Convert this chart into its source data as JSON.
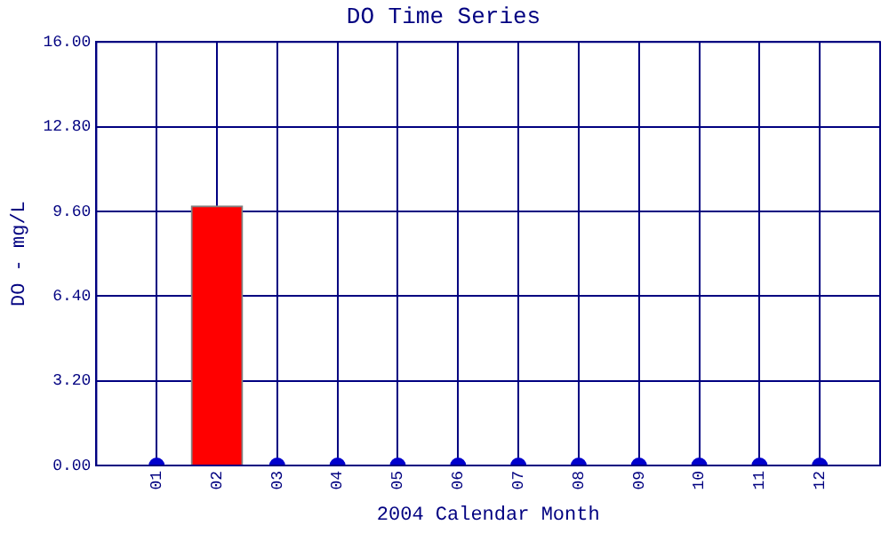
{
  "chart_data": {
    "type": "bar",
    "title": "DO Time Series",
    "xlabel": "2004 Calendar Month",
    "ylabel": "DO - mg/L",
    "x": [
      1,
      2,
      3,
      4,
      5,
      6,
      7,
      8,
      9,
      10,
      11,
      12
    ],
    "series": [
      {
        "color": "#ff0000",
        "values": [
          null,
          9.8,
          null,
          null,
          null,
          null,
          null,
          null,
          null,
          null,
          null,
          null
        ]
      },
      {
        "type": "scatter",
        "color": "#0000cc",
        "values": [
          0,
          null,
          0,
          0,
          0,
          0,
          0,
          0,
          0,
          0,
          0,
          0
        ]
      }
    ],
    "xlim": [
      0,
      13
    ],
    "xticks": [
      {
        "value": 1,
        "label": "01"
      },
      {
        "value": 2,
        "label": "02"
      },
      {
        "value": 3,
        "label": "03"
      },
      {
        "value": 4,
        "label": "04"
      },
      {
        "value": 5,
        "label": "05"
      },
      {
        "value": 6,
        "label": "06"
      },
      {
        "value": 7,
        "label": "07"
      },
      {
        "value": 8,
        "label": "08"
      },
      {
        "value": 9,
        "label": "09"
      },
      {
        "value": 10,
        "label": "10"
      },
      {
        "value": 11,
        "label": "11"
      },
      {
        "value": 12,
        "label": "12"
      }
    ],
    "ylim": [
      0,
      16
    ],
    "yticks": [
      {
        "value": 0,
        "label": "0.00"
      },
      {
        "value": 3.2,
        "label": "3.20"
      },
      {
        "value": 6.4,
        "label": "6.40"
      },
      {
        "value": 9.6,
        "label": "9.60"
      },
      {
        "value": 12.8,
        "label": "12.80"
      },
      {
        "value": 16,
        "label": "16.00"
      }
    ],
    "grid": true,
    "marker": "circle",
    "legend": false
  }
}
